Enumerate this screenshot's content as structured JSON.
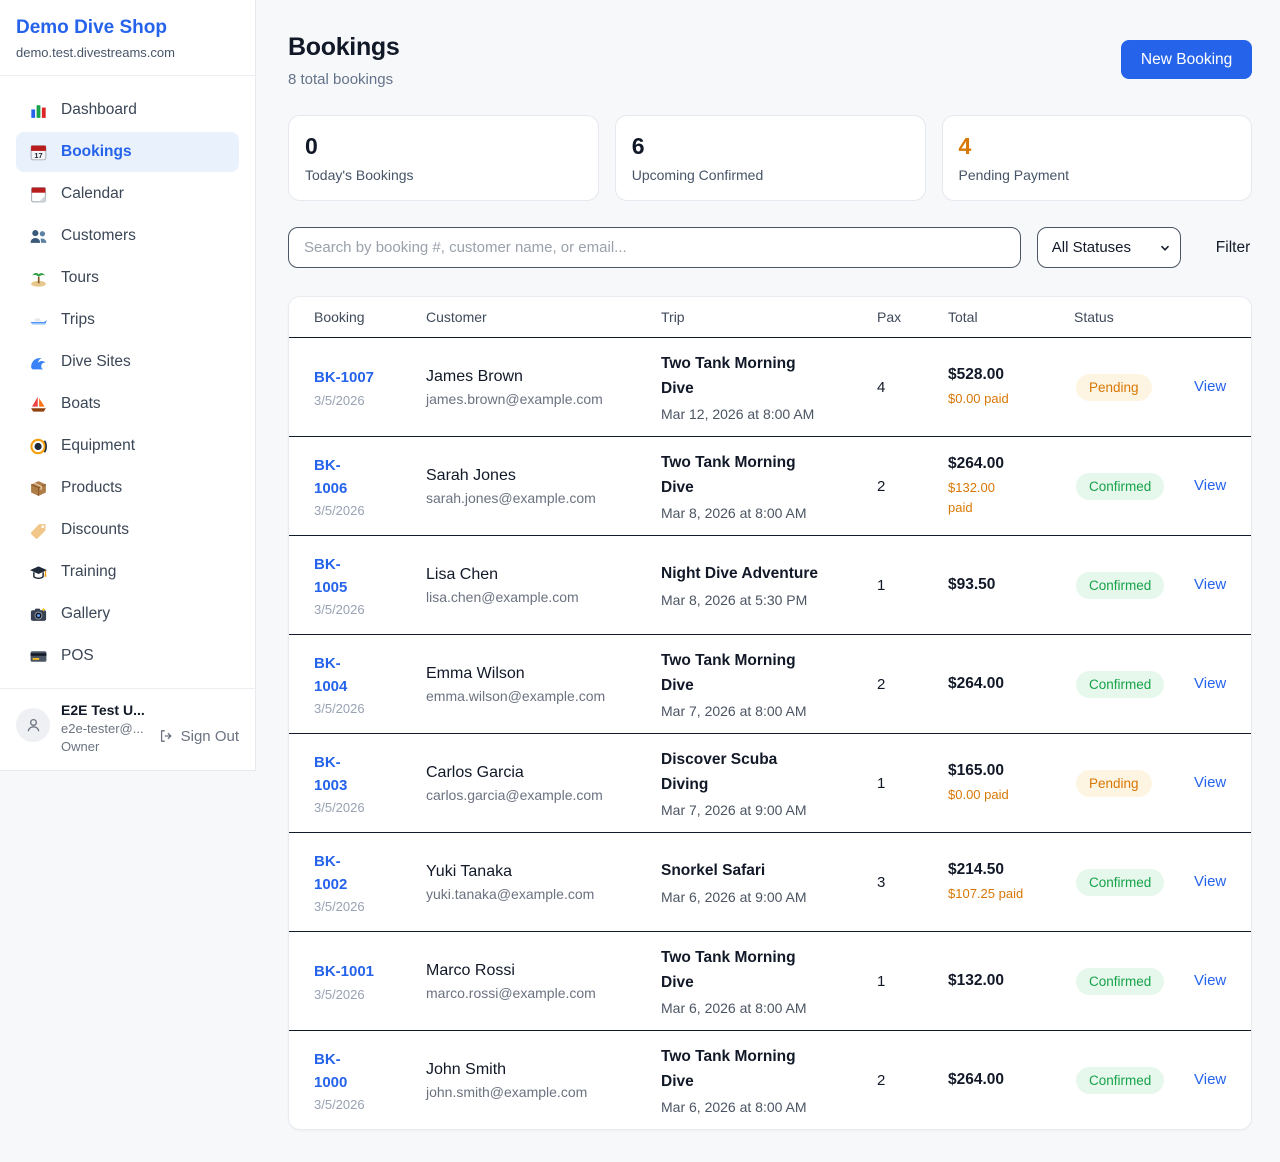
{
  "brand": {
    "name": "Demo Dive Shop",
    "domain": "demo.test.divestreams.com"
  },
  "sidebar": {
    "items": [
      {
        "label": "Dashboard",
        "icon": "bar-chart",
        "active": false
      },
      {
        "label": "Bookings",
        "icon": "calendar",
        "active": true
      },
      {
        "label": "Calendar",
        "icon": "tear-calendar",
        "active": false
      },
      {
        "label": "Customers",
        "icon": "people",
        "active": false
      },
      {
        "label": "Tours",
        "icon": "island",
        "active": false
      },
      {
        "label": "Trips",
        "icon": "speedboat",
        "active": false
      },
      {
        "label": "Dive Sites",
        "icon": "wave",
        "active": false
      },
      {
        "label": "Boats",
        "icon": "sailboat",
        "active": false
      },
      {
        "label": "Equipment",
        "icon": "dive-mask",
        "active": false
      },
      {
        "label": "Products",
        "icon": "package",
        "active": false
      },
      {
        "label": "Discounts",
        "icon": "tag",
        "active": false
      },
      {
        "label": "Training",
        "icon": "grad-cap",
        "active": false
      },
      {
        "label": "Gallery",
        "icon": "camera",
        "active": false
      },
      {
        "label": "POS",
        "icon": "credit-card",
        "active": false
      }
    ]
  },
  "user": {
    "name": "E2E Test U...",
    "email": "e2e-tester@...",
    "role": "Owner",
    "sign_out_label": "Sign Out"
  },
  "header": {
    "title": "Bookings",
    "subtitle": "8 total bookings",
    "new_booking_label": "New Booking"
  },
  "stats": [
    {
      "value": "0",
      "label": "Today's Bookings",
      "highlight": false
    },
    {
      "value": "6",
      "label": "Upcoming Confirmed",
      "highlight": false
    },
    {
      "value": "4",
      "label": "Pending Payment",
      "highlight": true
    }
  ],
  "filters": {
    "search_placeholder": "Search by booking #, customer name, or email...",
    "status_selected": "All Statuses",
    "filter_label": "Filter"
  },
  "table": {
    "columns": [
      "Booking",
      "Customer",
      "Trip",
      "Pax",
      "Total",
      "Status"
    ],
    "view_label": "View",
    "rows": [
      {
        "booking": "BK-1007",
        "date": "3/5/2026",
        "customer": "James Brown",
        "email": "james.brown@example.com",
        "trip": "Two Tank Morning\nDive",
        "trip_time": "Mar 12, 2026 at 8:00 AM",
        "pax": "4",
        "total": "$528.00",
        "paid": "$0.00 paid",
        "status": "Pending"
      },
      {
        "booking": "BK-\n1006",
        "date": "3/5/2026",
        "customer": "Sarah Jones",
        "email": "sarah.jones@example.com",
        "trip": "Two Tank Morning\nDive",
        "trip_time": "Mar 8, 2026 at 8:00 AM",
        "pax": "2",
        "total": "$264.00",
        "paid": "$132.00\npaid",
        "status": "Confirmed"
      },
      {
        "booking": "BK-\n1005",
        "date": "3/5/2026",
        "customer": "Lisa Chen",
        "email": "lisa.chen@example.com",
        "trip": "Night Dive Adventure",
        "trip_time": "Mar 8, 2026 at 5:30 PM",
        "pax": "1",
        "total": "$93.50",
        "paid": "",
        "status": "Confirmed"
      },
      {
        "booking": "BK-\n1004",
        "date": "3/5/2026",
        "customer": "Emma Wilson",
        "email": "emma.wilson@example.com",
        "trip": "Two Tank Morning\nDive",
        "trip_time": "Mar 7, 2026 at 8:00 AM",
        "pax": "2",
        "total": "$264.00",
        "paid": "",
        "status": "Confirmed"
      },
      {
        "booking": "BK-\n1003",
        "date": "3/5/2026",
        "customer": "Carlos Garcia",
        "email": "carlos.garcia@example.com",
        "trip": "Discover Scuba\nDiving",
        "trip_time": "Mar 7, 2026 at 9:00 AM",
        "pax": "1",
        "total": "$165.00",
        "paid": "$0.00 paid",
        "status": "Pending"
      },
      {
        "booking": "BK-\n1002",
        "date": "3/5/2026",
        "customer": "Yuki Tanaka",
        "email": "yuki.tanaka@example.com",
        "trip": "Snorkel Safari",
        "trip_time": "Mar 6, 2026 at 9:00 AM",
        "pax": "3",
        "total": "$214.50",
        "paid": "$107.25 paid",
        "status": "Confirmed"
      },
      {
        "booking": "BK-1001",
        "date": "3/5/2026",
        "customer": "Marco Rossi",
        "email": "marco.rossi@example.com",
        "trip": "Two Tank Morning\nDive",
        "trip_time": "Mar 6, 2026 at 8:00 AM",
        "pax": "1",
        "total": "$132.00",
        "paid": "",
        "status": "Confirmed"
      },
      {
        "booking": "BK-\n1000",
        "date": "3/5/2026",
        "customer": "John Smith",
        "email": "john.smith@example.com",
        "trip": "Two Tank Morning\nDive",
        "trip_time": "Mar 6, 2026 at 8:00 AM",
        "pax": "2",
        "total": "$264.00",
        "paid": "",
        "status": "Confirmed"
      }
    ]
  },
  "colors": {
    "accent": "#2563eb",
    "orange": "#d97706",
    "pending_bg": "#fdf5e1",
    "pending_text": "#d97706",
    "confirmed_bg": "#e6f7ec",
    "confirmed_text": "#17a34a",
    "row_border": "#141c2b",
    "page_bg": "#f7f8fa"
  }
}
